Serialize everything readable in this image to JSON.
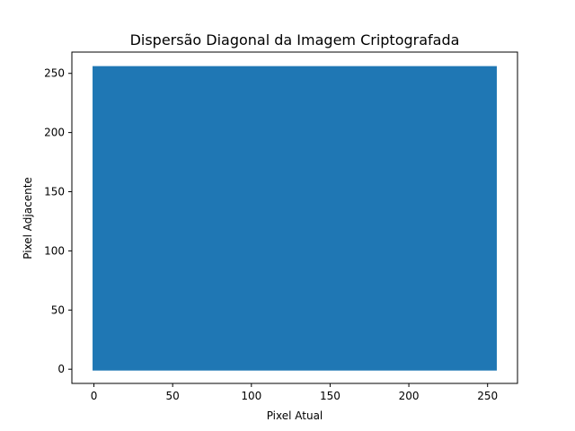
{
  "chart_data": {
    "type": "scatter",
    "title": "Dispersão Diagonal da Imagem Criptografada",
    "xlabel": "Pixel Atual",
    "ylabel": "Pixel Adjacente",
    "xlim": [
      -14,
      269
    ],
    "ylim": [
      -12,
      268
    ],
    "xticks": [
      0,
      50,
      100,
      150,
      200,
      250
    ],
    "yticks": [
      0,
      50,
      100,
      150,
      200,
      250
    ],
    "marker_color": "#1f77b4",
    "points_coverage": {
      "x_range": [
        0,
        255
      ],
      "y_range": [
        0,
        255
      ],
      "description": "dense uniform fill"
    },
    "grid": false,
    "legend": "none"
  }
}
